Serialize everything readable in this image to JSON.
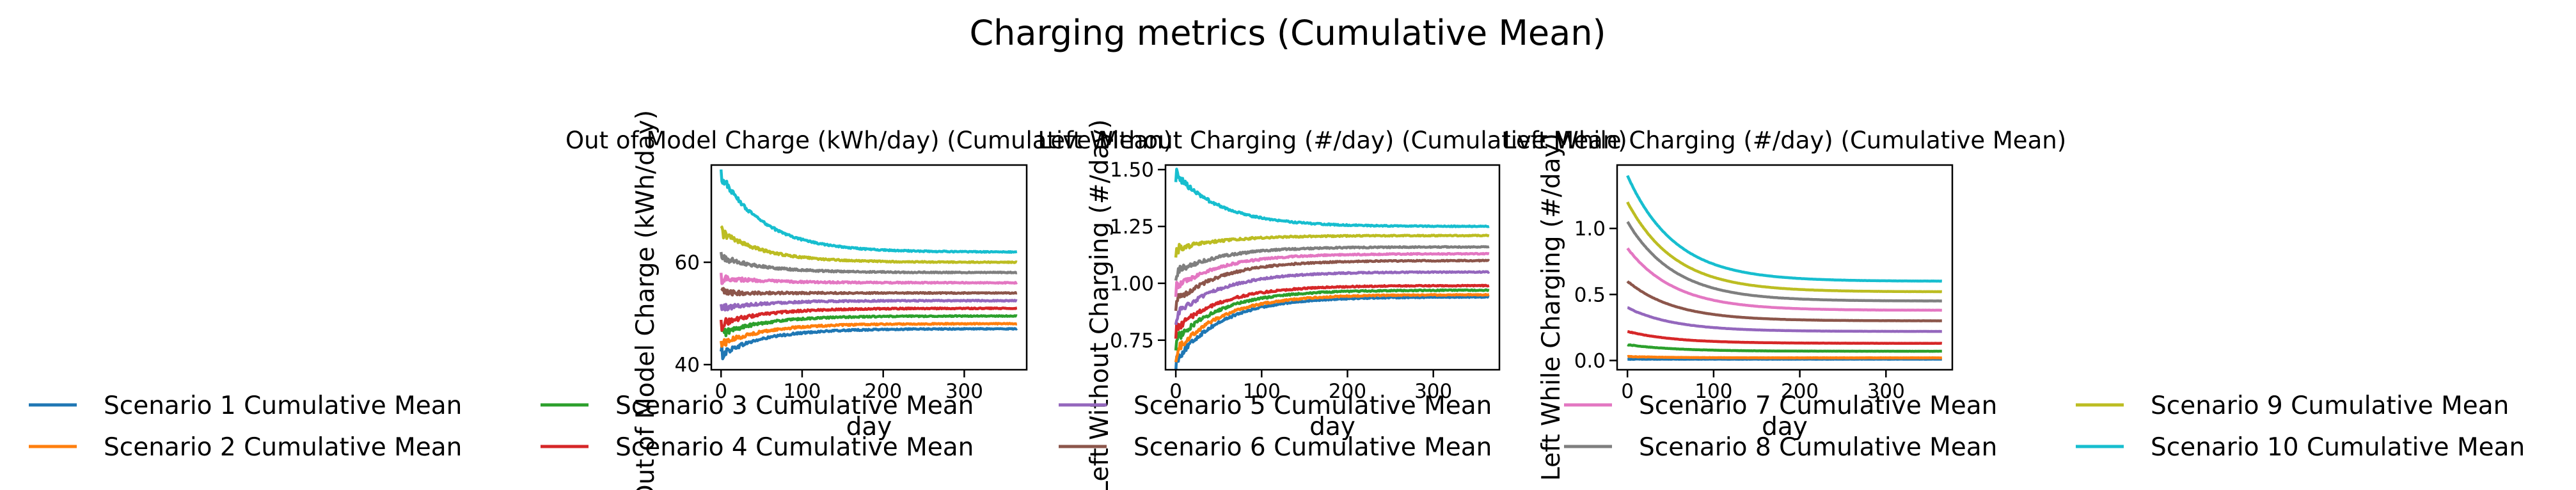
{
  "figure_title": "Charging metrics (Cumulative Mean)",
  "legend": {
    "placement": "bottom",
    "entries": [
      {
        "label": "Scenario 1 Cumulative Mean",
        "color": "#1f77b4"
      },
      {
        "label": "Scenario 2 Cumulative Mean",
        "color": "#ff7f0e"
      },
      {
        "label": "Scenario 3 Cumulative Mean",
        "color": "#2ca02c"
      },
      {
        "label": "Scenario 4 Cumulative Mean",
        "color": "#d62728"
      },
      {
        "label": "Scenario 5 Cumulative Mean",
        "color": "#9467bd"
      },
      {
        "label": "Scenario 6 Cumulative Mean",
        "color": "#8c564b"
      },
      {
        "label": "Scenario 7 Cumulative Mean",
        "color": "#e377c2"
      },
      {
        "label": "Scenario 8 Cumulative Mean",
        "color": "#7f7f7f"
      },
      {
        "label": "Scenario 9 Cumulative Mean",
        "color": "#bcbd22"
      },
      {
        "label": "Scenario 10 Cumulative Mean",
        "color": "#17becf"
      }
    ]
  },
  "chart_data": [
    {
      "type": "line",
      "title": "Out of Model Charge (kWh/day) (Cumulative Mean)",
      "xlabel": "day",
      "ylabel": "Out of Model Charge (kWh/day)",
      "xlim": [
        -12,
        377
      ],
      "ylim": [
        39,
        79
      ],
      "xticks": [
        0,
        100,
        200,
        300
      ],
      "yticks": [
        40,
        60
      ],
      "grid": false,
      "series": [
        {
          "name": "Scenario 1 Cumulative Mean",
          "start": 42,
          "final": 47.0
        },
        {
          "name": "Scenario 2 Cumulative Mean",
          "start": 44,
          "final": 48.0
        },
        {
          "name": "Scenario 3 Cumulative Mean",
          "start": 46,
          "final": 49.5
        },
        {
          "name": "Scenario 4 Cumulative Mean",
          "start": 48,
          "final": 51.0
        },
        {
          "name": "Scenario 5 Cumulative Mean",
          "start": 51,
          "final": 52.5
        },
        {
          "name": "Scenario 6 Cumulative Mean",
          "start": 54,
          "final": 54.0
        },
        {
          "name": "Scenario 7 Cumulative Mean",
          "start": 57,
          "final": 56.0
        },
        {
          "name": "Scenario 8 Cumulative Mean",
          "start": 61,
          "final": 58.0
        },
        {
          "name": "Scenario 9 Cumulative Mean",
          "start": 66,
          "final": 60.0
        },
        {
          "name": "Scenario 10 Cumulative Mean",
          "start": 77,
          "final": 62.0
        }
      ]
    },
    {
      "type": "line",
      "title": "Left Without Charging (#/day) (Cumulative Mean)",
      "xlabel": "day",
      "ylabel": "Left Without Charging (#/day)",
      "xlim": [
        -12,
        377
      ],
      "ylim": [
        0.62,
        1.52
      ],
      "xticks": [
        0,
        100,
        200,
        300
      ],
      "yticks": [
        0.75,
        1.0,
        1.25,
        1.5
      ],
      "grid": false,
      "series": [
        {
          "name": "Scenario 1 Cumulative Mean",
          "start": 0.66,
          "final": 0.94
        },
        {
          "name": "Scenario 2 Cumulative Mean",
          "start": 0.7,
          "final": 0.95
        },
        {
          "name": "Scenario 3 Cumulative Mean",
          "start": 0.75,
          "final": 0.97
        },
        {
          "name": "Scenario 4 Cumulative Mean",
          "start": 0.8,
          "final": 0.99
        },
        {
          "name": "Scenario 5 Cumulative Mean",
          "start": 0.86,
          "final": 1.05
        },
        {
          "name": "Scenario 6 Cumulative Mean",
          "start": 0.92,
          "final": 1.1
        },
        {
          "name": "Scenario 7 Cumulative Mean",
          "start": 0.98,
          "final": 1.13
        },
        {
          "name": "Scenario 8 Cumulative Mean",
          "start": 1.05,
          "final": 1.16
        },
        {
          "name": "Scenario 9 Cumulative Mean",
          "start": 1.15,
          "final": 1.21
        },
        {
          "name": "Scenario 10 Cumulative Mean",
          "start": 1.48,
          "final": 1.25
        }
      ]
    },
    {
      "type": "line",
      "title": "Left While Charging (#/day) (Cumulative Mean)",
      "xlabel": "day",
      "ylabel": "Left While Charging (#/day)",
      "xlim": [
        -12,
        377
      ],
      "ylim": [
        -0.07,
        1.48
      ],
      "xticks": [
        0,
        100,
        200,
        300
      ],
      "yticks": [
        0.0,
        0.5,
        1.0
      ],
      "grid": false,
      "series": [
        {
          "name": "Scenario 1 Cumulative Mean",
          "start": 0.01,
          "final": 0.01
        },
        {
          "name": "Scenario 2 Cumulative Mean",
          "start": 0.03,
          "final": 0.02
        },
        {
          "name": "Scenario 3 Cumulative Mean",
          "start": 0.12,
          "final": 0.07
        },
        {
          "name": "Scenario 4 Cumulative Mean",
          "start": 0.22,
          "final": 0.13
        },
        {
          "name": "Scenario 5 Cumulative Mean",
          "start": 0.4,
          "final": 0.22
        },
        {
          "name": "Scenario 6 Cumulative Mean",
          "start": 0.6,
          "final": 0.3
        },
        {
          "name": "Scenario 7 Cumulative Mean",
          "start": 0.85,
          "final": 0.38
        },
        {
          "name": "Scenario 8 Cumulative Mean",
          "start": 1.05,
          "final": 0.45
        },
        {
          "name": "Scenario 9 Cumulative Mean",
          "start": 1.2,
          "final": 0.52
        },
        {
          "name": "Scenario 10 Cumulative Mean",
          "start": 1.4,
          "final": 0.6
        }
      ]
    }
  ]
}
